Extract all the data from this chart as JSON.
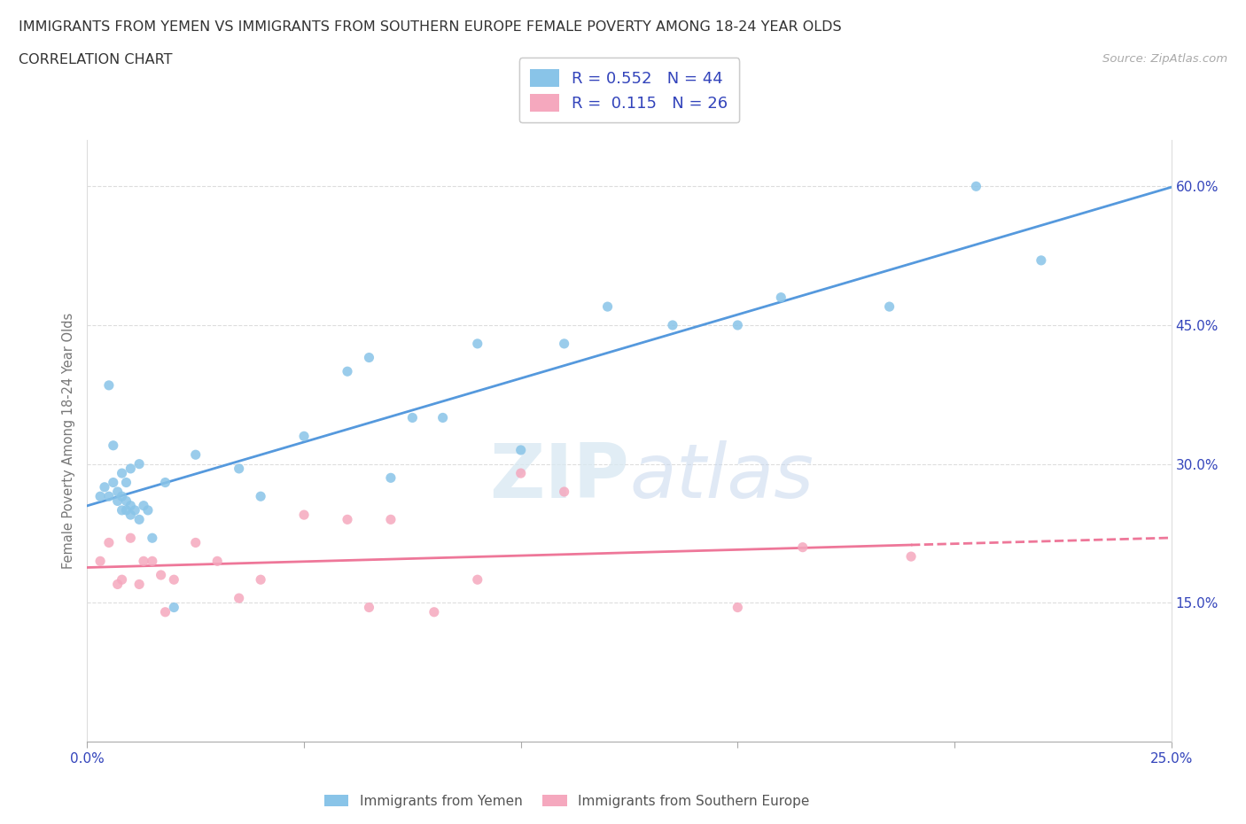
{
  "title_line1": "IMMIGRANTS FROM YEMEN VS IMMIGRANTS FROM SOUTHERN EUROPE FEMALE POVERTY AMONG 18-24 YEAR OLDS",
  "title_line2": "CORRELATION CHART",
  "source_text": "Source: ZipAtlas.com",
  "ylabel": "Female Poverty Among 18-24 Year Olds",
  "xlim": [
    0,
    0.25
  ],
  "ylim": [
    0,
    0.65
  ],
  "xtick_positions": [
    0.0,
    0.05,
    0.1,
    0.15,
    0.2,
    0.25
  ],
  "xtick_labels": [
    "0.0%",
    "",
    "",
    "",
    "",
    "25.0%"
  ],
  "ytick_positions": [
    0.15,
    0.3,
    0.45,
    0.6
  ],
  "ytick_labels": [
    "15.0%",
    "30.0%",
    "45.0%",
    "60.0%"
  ],
  "R_yemen": 0.552,
  "N_yemen": 44,
  "R_se": 0.115,
  "N_se": 26,
  "color_yemen": "#89C4E8",
  "color_se": "#F5A8BE",
  "line_color_yemen": "#5599DD",
  "line_color_se": "#EE7799",
  "legend_text_color": "#3344BB",
  "axis_tick_color": "#3344BB",
  "ylabel_color": "#777777",
  "grid_color": "#DDDDDD",
  "background_color": "#FFFFFF",
  "yemen_x": [
    0.003,
    0.004,
    0.005,
    0.005,
    0.006,
    0.006,
    0.007,
    0.007,
    0.008,
    0.008,
    0.008,
    0.009,
    0.009,
    0.009,
    0.01,
    0.01,
    0.01,
    0.011,
    0.012,
    0.012,
    0.013,
    0.014,
    0.015,
    0.018,
    0.02,
    0.025,
    0.035,
    0.04,
    0.05,
    0.06,
    0.065,
    0.07,
    0.075,
    0.082,
    0.09,
    0.1,
    0.11,
    0.12,
    0.135,
    0.15,
    0.16,
    0.185,
    0.205,
    0.22
  ],
  "yemen_y": [
    0.265,
    0.275,
    0.385,
    0.265,
    0.28,
    0.32,
    0.26,
    0.27,
    0.25,
    0.265,
    0.29,
    0.25,
    0.26,
    0.28,
    0.245,
    0.255,
    0.295,
    0.25,
    0.24,
    0.3,
    0.255,
    0.25,
    0.22,
    0.28,
    0.145,
    0.31,
    0.295,
    0.265,
    0.33,
    0.4,
    0.415,
    0.285,
    0.35,
    0.35,
    0.43,
    0.315,
    0.43,
    0.47,
    0.45,
    0.45,
    0.48,
    0.47,
    0.6,
    0.52
  ],
  "se_x": [
    0.003,
    0.005,
    0.007,
    0.008,
    0.01,
    0.012,
    0.013,
    0.015,
    0.017,
    0.018,
    0.02,
    0.025,
    0.03,
    0.035,
    0.04,
    0.05,
    0.06,
    0.065,
    0.07,
    0.08,
    0.09,
    0.1,
    0.11,
    0.15,
    0.165,
    0.19
  ],
  "se_y": [
    0.195,
    0.215,
    0.17,
    0.175,
    0.22,
    0.17,
    0.195,
    0.195,
    0.18,
    0.14,
    0.175,
    0.215,
    0.195,
    0.155,
    0.175,
    0.245,
    0.24,
    0.145,
    0.24,
    0.14,
    0.175,
    0.29,
    0.27,
    0.145,
    0.21,
    0.2
  ],
  "se_line_solid_end": 0.19,
  "se_line_dashed_start": 0.19,
  "se_line_dashed_end": 0.25
}
